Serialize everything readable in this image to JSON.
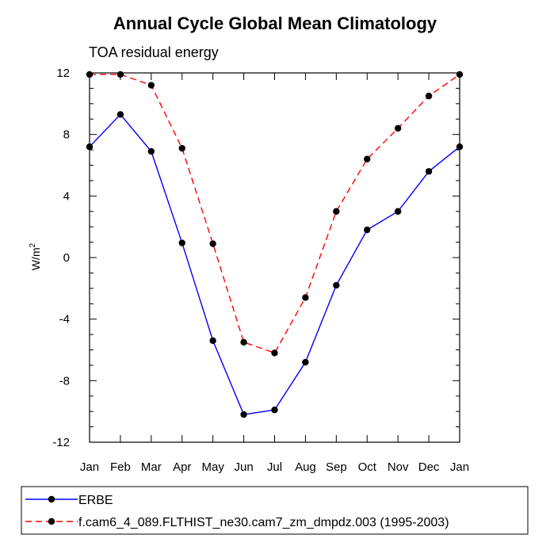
{
  "chart_data": {
    "type": "line",
    "title": "Annual Cycle Global Mean Climatology",
    "subtitle": "TOA residual energy",
    "ylabel": "W/m",
    "ylabel_superscript": "2",
    "categories": [
      "Jan",
      "Feb",
      "Mar",
      "Apr",
      "May",
      "Jun",
      "Jul",
      "Aug",
      "Sep",
      "Oct",
      "Nov",
      "Dec",
      "Jan"
    ],
    "ylim": [
      -12,
      12
    ],
    "yticks": [
      -12,
      -8,
      -4,
      0,
      4,
      8,
      12
    ],
    "ytick_labels": [
      "-12",
      "-8",
      "-4",
      "0",
      "4",
      "8",
      "12"
    ],
    "grid": false,
    "legend_placement": "bottom",
    "series": [
      {
        "name": "ERBE",
        "color": "#0000ff",
        "dash": "solid",
        "values": [
          7.2,
          9.3,
          6.9,
          0.95,
          -5.4,
          -10.2,
          -9.9,
          -6.8,
          -1.8,
          1.8,
          3.0,
          5.6,
          7.2
        ]
      },
      {
        "name": "f.cam6_4_089.FLTHIST_ne30.cam7_zm_dmpdz.003 (1995-2003)",
        "color": "#ff0000",
        "dash": "dashed",
        "values": [
          11.9,
          11.9,
          11.2,
          7.1,
          0.9,
          -5.5,
          -6.2,
          -2.6,
          3.0,
          6.4,
          8.4,
          10.5,
          11.9
        ]
      }
    ]
  }
}
